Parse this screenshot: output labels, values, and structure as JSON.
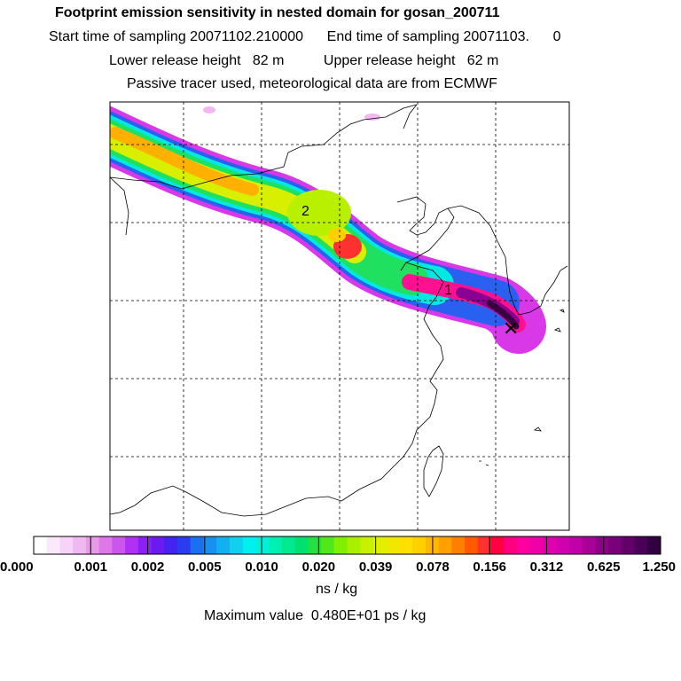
{
  "header": {
    "title": "Footprint emission sensitivity in nested domain for gosan_200711",
    "sampling_line": "Start time of sampling 20071102.210000      End time of sampling 20071103.      0",
    "release_line": "Lower release height   82 m          Upper release height   62 m",
    "tracer_line": "Passive tracer used, meteorological data are from ECMWF"
  },
  "chart_data": {
    "type": "heatmap",
    "title": "Footprint emission sensitivity in nested domain for gosan_200711",
    "colorbar": {
      "unit_label": "ns / kg",
      "tick_labels": [
        "0.000",
        "0.001",
        "0.002",
        "0.005",
        "0.010",
        "0.020",
        "0.039",
        "0.078",
        "0.156",
        "0.312",
        "0.625",
        "1.250"
      ],
      "colors": [
        "#ffffff",
        "#fbe9fb",
        "#f7d3f7",
        "#f0b8f0",
        "#e89ae8",
        "#dd78e8",
        "#cc55ee",
        "#b030f5",
        "#8a20f5",
        "#6a1cf0",
        "#4422f0",
        "#2a3cf0",
        "#1a70f0",
        "#1890f0",
        "#12b0f0",
        "#10d0f0",
        "#00f0f0",
        "#00f0d8",
        "#00f0b4",
        "#00e890",
        "#00e070",
        "#22e040",
        "#50e818",
        "#80f000",
        "#a8f000",
        "#c8f000",
        "#e0f000",
        "#f0e800",
        "#ffe000",
        "#ffd000",
        "#ffb800",
        "#ffa000",
        "#ff8000",
        "#ff5a00",
        "#ff3030",
        "#ff0040",
        "#ff0080",
        "#ff00a0",
        "#f000a8",
        "#e000b0",
        "#d000b0",
        "#c000a8",
        "#a80098",
        "#900088",
        "#780078",
        "#600068",
        "#4a0058",
        "#300040"
      ]
    },
    "labels": {
      "point_1": "1",
      "point_2": "2",
      "receptor": "✕"
    },
    "max_value_text": "Maximum value  0.480E+01 ps / kg"
  }
}
